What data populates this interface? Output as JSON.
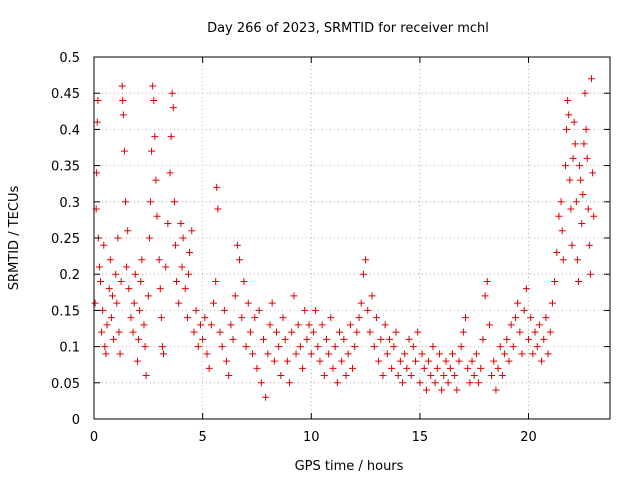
{
  "chart_data": {
    "type": "scatter",
    "title": "Day 266 of 2023, SRMTID for receiver mchl",
    "xlabel": "GPS time / hours",
    "ylabel": "SRMTID / TECUs",
    "xlim": [
      0,
      23.75
    ],
    "ylim": [
      0,
      0.5
    ],
    "x_ticks": [
      0,
      5,
      10,
      15,
      20
    ],
    "x_tick_labels": [
      "0",
      "5",
      "10",
      "15",
      "20"
    ],
    "y_ticks": [
      0,
      0.05,
      0.1,
      0.15,
      0.2,
      0.25,
      0.3,
      0.35,
      0.4,
      0.45,
      0.5
    ],
    "y_tick_labels": [
      "0",
      "0.05",
      "0.1",
      "0.15",
      "0.2",
      "0.25",
      "0.3",
      "0.35",
      "0.4",
      "0.45",
      "0.5"
    ],
    "grid": true,
    "marker": "+",
    "color": "#e00000",
    "series": [
      {
        "name": "SRMTID",
        "points": [
          [
            0.05,
            0.16
          ],
          [
            0.1,
            0.29
          ],
          [
            0.12,
            0.34
          ],
          [
            0.15,
            0.41
          ],
          [
            0.18,
            0.44
          ],
          [
            0.2,
            0.25
          ],
          [
            0.25,
            0.21
          ],
          [
            0.3,
            0.19
          ],
          [
            0.35,
            0.12
          ],
          [
            0.4,
            0.15
          ],
          [
            0.45,
            0.24
          ],
          [
            0.5,
            0.1
          ],
          [
            0.55,
            0.09
          ],
          [
            0.6,
            0.13
          ],
          [
            0.7,
            0.18
          ],
          [
            0.75,
            0.22
          ],
          [
            0.8,
            0.14
          ],
          [
            0.85,
            0.17
          ],
          [
            0.9,
            0.11
          ],
          [
            1.0,
            0.2
          ],
          [
            1.05,
            0.16
          ],
          [
            1.1,
            0.25
          ],
          [
            1.15,
            0.12
          ],
          [
            1.2,
            0.09
          ],
          [
            1.25,
            0.19
          ],
          [
            1.3,
            0.46
          ],
          [
            1.32,
            0.44
          ],
          [
            1.35,
            0.42
          ],
          [
            1.4,
            0.37
          ],
          [
            1.45,
            0.3
          ],
          [
            1.5,
            0.21
          ],
          [
            1.55,
            0.26
          ],
          [
            1.6,
            0.18
          ],
          [
            1.7,
            0.14
          ],
          [
            1.8,
            0.12
          ],
          [
            1.85,
            0.16
          ],
          [
            1.9,
            0.2
          ],
          [
            2.0,
            0.08
          ],
          [
            2.05,
            0.11
          ],
          [
            2.1,
            0.15
          ],
          [
            2.15,
            0.19
          ],
          [
            2.2,
            0.22
          ],
          [
            2.3,
            0.13
          ],
          [
            2.35,
            0.1
          ],
          [
            2.4,
            0.06
          ],
          [
            2.5,
            0.17
          ],
          [
            2.55,
            0.25
          ],
          [
            2.6,
            0.3
          ],
          [
            2.65,
            0.37
          ],
          [
            2.7,
            0.46
          ],
          [
            2.75,
            0.44
          ],
          [
            2.8,
            0.39
          ],
          [
            2.85,
            0.33
          ],
          [
            2.9,
            0.28
          ],
          [
            3.0,
            0.22
          ],
          [
            3.05,
            0.18
          ],
          [
            3.1,
            0.14
          ],
          [
            3.15,
            0.1
          ],
          [
            3.2,
            0.09
          ],
          [
            3.3,
            0.21
          ],
          [
            3.4,
            0.27
          ],
          [
            3.5,
            0.34
          ],
          [
            3.55,
            0.39
          ],
          [
            3.6,
            0.45
          ],
          [
            3.65,
            0.43
          ],
          [
            3.7,
            0.3
          ],
          [
            3.75,
            0.24
          ],
          [
            3.8,
            0.19
          ],
          [
            3.9,
            0.16
          ],
          [
            4.0,
            0.27
          ],
          [
            4.05,
            0.21
          ],
          [
            4.1,
            0.25
          ],
          [
            4.2,
            0.18
          ],
          [
            4.3,
            0.14
          ],
          [
            4.35,
            0.2
          ],
          [
            4.4,
            0.23
          ],
          [
            4.5,
            0.26
          ],
          [
            4.6,
            0.12
          ],
          [
            4.7,
            0.15
          ],
          [
            4.8,
            0.1
          ],
          [
            4.9,
            0.13
          ],
          [
            5.0,
            0.11
          ],
          [
            5.1,
            0.14
          ],
          [
            5.2,
            0.09
          ],
          [
            5.3,
            0.07
          ],
          [
            5.4,
            0.13
          ],
          [
            5.5,
            0.16
          ],
          [
            5.6,
            0.19
          ],
          [
            5.65,
            0.32
          ],
          [
            5.7,
            0.29
          ],
          [
            5.8,
            0.12
          ],
          [
            5.9,
            0.1
          ],
          [
            6.0,
            0.15
          ],
          [
            6.1,
            0.08
          ],
          [
            6.2,
            0.06
          ],
          [
            6.3,
            0.13
          ],
          [
            6.4,
            0.11
          ],
          [
            6.5,
            0.17
          ],
          [
            6.6,
            0.24
          ],
          [
            6.7,
            0.22
          ],
          [
            6.8,
            0.14
          ],
          [
            6.9,
            0.19
          ],
          [
            7.0,
            0.1
          ],
          [
            7.1,
            0.16
          ],
          [
            7.2,
            0.12
          ],
          [
            7.3,
            0.09
          ],
          [
            7.4,
            0.14
          ],
          [
            7.5,
            0.07
          ],
          [
            7.6,
            0.15
          ],
          [
            7.7,
            0.05
          ],
          [
            7.8,
            0.11
          ],
          [
            7.9,
            0.03
          ],
          [
            8.0,
            0.09
          ],
          [
            8.1,
            0.13
          ],
          [
            8.2,
            0.16
          ],
          [
            8.3,
            0.08
          ],
          [
            8.4,
            0.12
          ],
          [
            8.5,
            0.1
          ],
          [
            8.6,
            0.06
          ],
          [
            8.7,
            0.14
          ],
          [
            8.8,
            0.11
          ],
          [
            8.9,
            0.08
          ],
          [
            9.0,
            0.05
          ],
          [
            9.1,
            0.12
          ],
          [
            9.2,
            0.17
          ],
          [
            9.3,
            0.09
          ],
          [
            9.4,
            0.13
          ],
          [
            9.5,
            0.1
          ],
          [
            9.6,
            0.07
          ],
          [
            9.7,
            0.15
          ],
          [
            9.8,
            0.11
          ],
          [
            9.9,
            0.13
          ],
          [
            10.0,
            0.09
          ],
          [
            10.1,
            0.12
          ],
          [
            10.2,
            0.15
          ],
          [
            10.3,
            0.1
          ],
          [
            10.4,
            0.08
          ],
          [
            10.5,
            0.13
          ],
          [
            10.6,
            0.06
          ],
          [
            10.7,
            0.11
          ],
          [
            10.8,
            0.09
          ],
          [
            10.9,
            0.14
          ],
          [
            11.0,
            0.07
          ],
          [
            11.1,
            0.1
          ],
          [
            11.2,
            0.05
          ],
          [
            11.3,
            0.12
          ],
          [
            11.4,
            0.08
          ],
          [
            11.5,
            0.11
          ],
          [
            11.6,
            0.06
          ],
          [
            11.7,
            0.09
          ],
          [
            11.8,
            0.13
          ],
          [
            11.9,
            0.07
          ],
          [
            12.0,
            0.1
          ],
          [
            12.1,
            0.12
          ],
          [
            12.2,
            0.14
          ],
          [
            12.3,
            0.16
          ],
          [
            12.4,
            0.2
          ],
          [
            12.5,
            0.22
          ],
          [
            12.6,
            0.15
          ],
          [
            12.7,
            0.12
          ],
          [
            12.8,
            0.17
          ],
          [
            12.9,
            0.1
          ],
          [
            13.0,
            0.14
          ],
          [
            13.1,
            0.08
          ],
          [
            13.2,
            0.11
          ],
          [
            13.3,
            0.06
          ],
          [
            13.4,
            0.13
          ],
          [
            13.5,
            0.09
          ],
          [
            13.6,
            0.11
          ],
          [
            13.7,
            0.07
          ],
          [
            13.8,
            0.1
          ],
          [
            13.9,
            0.12
          ],
          [
            14.0,
            0.06
          ],
          [
            14.1,
            0.08
          ],
          [
            14.2,
            0.05
          ],
          [
            14.3,
            0.09
          ],
          [
            14.4,
            0.07
          ],
          [
            14.5,
            0.11
          ],
          [
            14.6,
            0.06
          ],
          [
            14.7,
            0.1
          ],
          [
            14.8,
            0.08
          ],
          [
            14.9,
            0.12
          ],
          [
            15.0,
            0.05
          ],
          [
            15.1,
            0.09
          ],
          [
            15.2,
            0.07
          ],
          [
            15.3,
            0.04
          ],
          [
            15.4,
            0.08
          ],
          [
            15.5,
            0.06
          ],
          [
            15.6,
            0.1
          ],
          [
            15.7,
            0.05
          ],
          [
            15.8,
            0.07
          ],
          [
            15.9,
            0.09
          ],
          [
            16.0,
            0.04
          ],
          [
            16.1,
            0.06
          ],
          [
            16.2,
            0.08
          ],
          [
            16.3,
            0.05
          ],
          [
            16.4,
            0.07
          ],
          [
            16.5,
            0.09
          ],
          [
            16.6,
            0.06
          ],
          [
            16.7,
            0.04
          ],
          [
            16.8,
            0.08
          ],
          [
            16.9,
            0.1
          ],
          [
            17.0,
            0.12
          ],
          [
            17.1,
            0.14
          ],
          [
            17.2,
            0.07
          ],
          [
            17.3,
            0.05
          ],
          [
            17.4,
            0.08
          ],
          [
            17.5,
            0.06
          ],
          [
            17.6,
            0.09
          ],
          [
            17.7,
            0.05
          ],
          [
            17.8,
            0.07
          ],
          [
            17.9,
            0.11
          ],
          [
            18.0,
            0.17
          ],
          [
            18.1,
            0.19
          ],
          [
            18.2,
            0.13
          ],
          [
            18.3,
            0.06
          ],
          [
            18.4,
            0.08
          ],
          [
            18.5,
            0.04
          ],
          [
            18.6,
            0.07
          ],
          [
            18.7,
            0.1
          ],
          [
            18.8,
            0.06
          ],
          [
            18.9,
            0.09
          ],
          [
            19.0,
            0.11
          ],
          [
            19.1,
            0.08
          ],
          [
            19.2,
            0.13
          ],
          [
            19.3,
            0.1
          ],
          [
            19.4,
            0.14
          ],
          [
            19.5,
            0.16
          ],
          [
            19.6,
            0.12
          ],
          [
            19.7,
            0.09
          ],
          [
            19.8,
            0.15
          ],
          [
            19.9,
            0.18
          ],
          [
            20.0,
            0.11
          ],
          [
            20.1,
            0.14
          ],
          [
            20.2,
            0.09
          ],
          [
            20.3,
            0.12
          ],
          [
            20.4,
            0.1
          ],
          [
            20.5,
            0.13
          ],
          [
            20.6,
            0.08
          ],
          [
            20.7,
            0.11
          ],
          [
            20.8,
            0.14
          ],
          [
            20.9,
            0.09
          ],
          [
            21.0,
            0.12
          ],
          [
            21.1,
            0.16
          ],
          [
            21.2,
            0.19
          ],
          [
            21.3,
            0.23
          ],
          [
            21.4,
            0.28
          ],
          [
            21.5,
            0.3
          ],
          [
            21.55,
            0.26
          ],
          [
            21.6,
            0.22
          ],
          [
            21.7,
            0.35
          ],
          [
            21.75,
            0.4
          ],
          [
            21.8,
            0.44
          ],
          [
            21.85,
            0.42
          ],
          [
            21.9,
            0.33
          ],
          [
            21.95,
            0.29
          ],
          [
            22.0,
            0.24
          ],
          [
            22.05,
            0.36
          ],
          [
            22.1,
            0.41
          ],
          [
            22.15,
            0.38
          ],
          [
            22.2,
            0.3
          ],
          [
            22.25,
            0.22
          ],
          [
            22.3,
            0.19
          ],
          [
            22.35,
            0.35
          ],
          [
            22.4,
            0.33
          ],
          [
            22.45,
            0.27
          ],
          [
            22.5,
            0.31
          ],
          [
            22.55,
            0.38
          ],
          [
            22.6,
            0.45
          ],
          [
            22.65,
            0.4
          ],
          [
            22.7,
            0.36
          ],
          [
            22.75,
            0.29
          ],
          [
            22.8,
            0.24
          ],
          [
            22.85,
            0.2
          ],
          [
            22.9,
            0.47
          ],
          [
            22.95,
            0.34
          ],
          [
            23.0,
            0.28
          ]
        ]
      }
    ]
  }
}
